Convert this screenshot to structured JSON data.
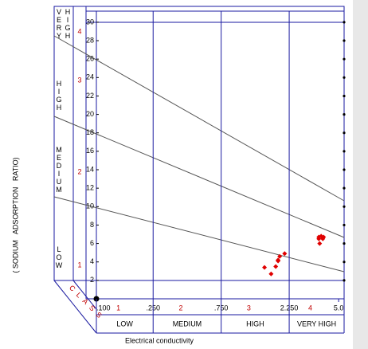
{
  "chart_data": {
    "type": "scatter",
    "xlabel": "Electrical conductivity",
    "ylabel": "( SODIUM   ADSORPTION   RATIO)",
    "class_label": "CLASS",
    "salinity_classes": {
      "numbers": [
        "1",
        "2",
        "3",
        "4"
      ],
      "labels": [
        "LOW",
        "MEDIUM",
        "HIGH",
        "VERY HIGH"
      ]
    },
    "sodium_classes": {
      "numbers": [
        "1",
        "2",
        "3",
        "4"
      ],
      "labels": [
        "LOW",
        "MEDIUM",
        "HIGH",
        "VERY HIGH"
      ]
    },
    "x": [
      1510,
      1680,
      1810,
      1880,
      1930,
      1880,
      2090,
      3680,
      3870,
      3770,
      3630,
      3920,
      3630
    ],
    "values": [
      3.4,
      2.7,
      3.5,
      4.1,
      4.6,
      4.2,
      4.9,
      6.0,
      6.5,
      6.8,
      6.7,
      6.7,
      6.5
    ],
    "color": "#e00000",
    "xscale": "log",
    "xlim": [
      100,
      5460
    ],
    "xticks": [
      {
        "value": 100,
        "label": ".100"
      },
      {
        "value": 250,
        "label": ".250"
      },
      {
        "value": 750,
        "label": ".750"
      },
      {
        "value": 2250,
        "label": "2.250"
      },
      {
        "value": 5000,
        "label": "5.0"
      }
    ],
    "ylim": [
      0,
      31.2
    ],
    "yticks": [
      2,
      4,
      6,
      8,
      10,
      12,
      14,
      16,
      18,
      20,
      22,
      24,
      26,
      28,
      30
    ]
  }
}
